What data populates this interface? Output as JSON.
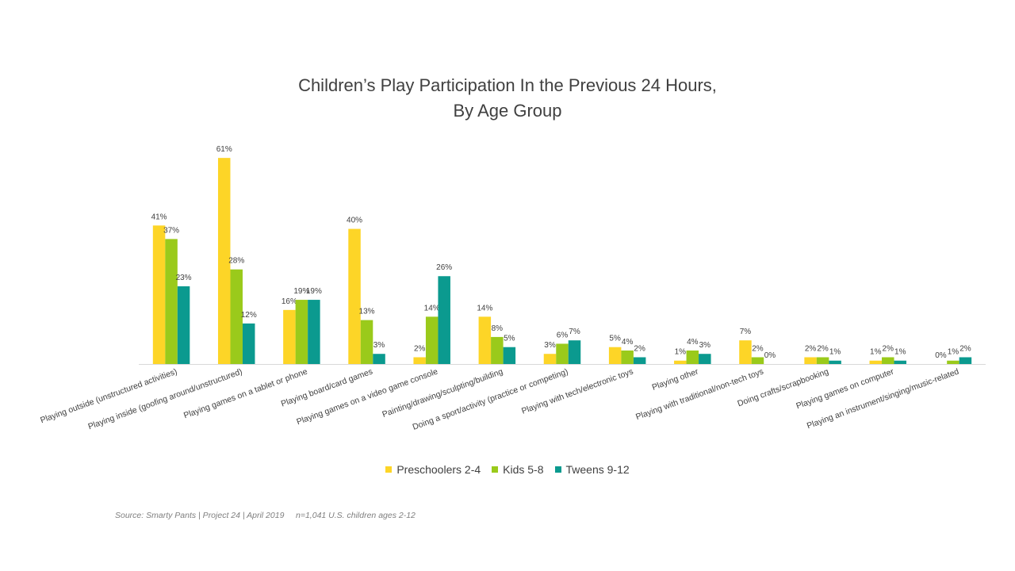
{
  "chart_data": {
    "type": "bar",
    "title": "Children’s Play Participation In the Previous 24 Hours,",
    "subtitle": "By Age Group",
    "xlabel": "",
    "ylabel": "",
    "ylim": [
      0,
      65
    ],
    "grid": false,
    "legend_position": "bottom",
    "value_suffix": "%",
    "categories": [
      "Playing outside (unstructured activities)",
      "Playing inside (goofing around/unstructured)",
      "Playing games on a tablet or phone",
      "Playing board/card games",
      "Playing games on a video game console",
      "Painting/drawing/sculpting/building",
      "Doing a sport/activity (practice or competing)",
      "Playing with tech/electronic toys",
      "Playing other",
      "Playing with traditional/non-tech toys",
      "Doing crafts/scrapbooking",
      "Playing games on computer",
      "Playing an instrument/singing/music-related"
    ],
    "series": [
      {
        "name": "Preschoolers 2-4",
        "color": "#FDD527",
        "values": [
          41,
          61,
          16,
          40,
          2,
          14,
          3,
          5,
          1,
          7,
          2,
          1,
          0
        ]
      },
      {
        "name": "Kids 5-8",
        "color": "#9ACA1B",
        "values": [
          37,
          28,
          19,
          13,
          14,
          8,
          6,
          4,
          4,
          2,
          2,
          2,
          1
        ]
      },
      {
        "name": "Tweens 9-12",
        "color": "#0B9A8F",
        "values": [
          23,
          12,
          19,
          3,
          26,
          5,
          7,
          2,
          3,
          0,
          1,
          1,
          2
        ]
      }
    ]
  },
  "source": "Source: Smarty Pants | Project 24 | April 2019     n=1,041 U.S. children ages 2-12"
}
